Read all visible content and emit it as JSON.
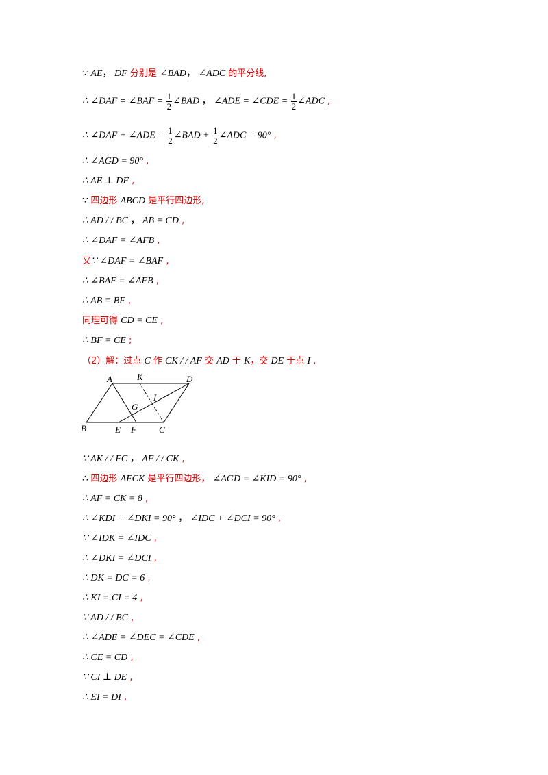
{
  "lines": [
    {
      "id": "l1",
      "parts": [
        {
          "t": "∵ ",
          "k": "u"
        },
        {
          "t": "AE",
          "k": "m"
        },
        {
          "t": "， ",
          "k": "u"
        },
        {
          "t": "DF",
          "k": "m"
        },
        {
          "t": " 分别是 ",
          "k": "r"
        },
        {
          "t": "∠BAD",
          "k": "m"
        },
        {
          "t": "， ",
          "k": "u"
        },
        {
          "t": "∠ADC",
          "k": "m"
        },
        {
          "t": " 的平分线,",
          "k": "r"
        }
      ]
    },
    {
      "id": "l2",
      "parts": [
        {
          "t": "∴ ∠DAF = ∠BAF = ",
          "k": "m"
        },
        {
          "t": "1|2",
          "k": "f"
        },
        {
          "t": "∠BAD",
          "k": "m"
        },
        {
          "t": " ，  ",
          "k": "u"
        },
        {
          "t": "∠ADE = ∠CDE = ",
          "k": "m"
        },
        {
          "t": "1|2",
          "k": "f"
        },
        {
          "t": "∠ADC",
          "k": "m"
        },
        {
          "t": " ,",
          "k": "r"
        }
      ]
    },
    {
      "id": "l3",
      "parts": [
        {
          "t": "∴ ∠DAF + ∠ADE = ",
          "k": "m"
        },
        {
          "t": "1|2",
          "k": "f"
        },
        {
          "t": "∠BAD + ",
          "k": "m"
        },
        {
          "t": "1|2",
          "k": "f"
        },
        {
          "t": "∠ADC = 90°",
          "k": "m"
        },
        {
          "t": " ,",
          "k": "r"
        }
      ]
    },
    {
      "id": "l4",
      "parts": [
        {
          "t": "∴ ∠AGD = 90°",
          "k": "m"
        },
        {
          "t": " ,",
          "k": "r"
        }
      ]
    },
    {
      "id": "l5",
      "parts": [
        {
          "t": "∴ AE ⊥ DF",
          "k": "m"
        },
        {
          "t": " ,",
          "k": "r"
        }
      ]
    },
    {
      "id": "l6",
      "parts": [
        {
          "t": "∵ ",
          "k": "u"
        },
        {
          "t": "四边形 ",
          "k": "r"
        },
        {
          "t": "ABCD",
          "k": "m"
        },
        {
          "t": " 是平行四边形,",
          "k": "r"
        }
      ]
    },
    {
      "id": "l7",
      "parts": [
        {
          "t": "∴ AD / / BC",
          "k": "m"
        },
        {
          "t": " ，  ",
          "k": "u"
        },
        {
          "t": "AB = CD",
          "k": "m"
        },
        {
          "t": " ,",
          "k": "r"
        }
      ]
    },
    {
      "id": "l8",
      "parts": [
        {
          "t": "∴ ∠DAF = ∠AFB",
          "k": "m"
        },
        {
          "t": " ,",
          "k": "r"
        }
      ]
    },
    {
      "id": "l9",
      "parts": [
        {
          "t": "又",
          "k": "r"
        },
        {
          "t": "∵ ∠DAF = ∠BAF",
          "k": "m"
        },
        {
          "t": " ,",
          "k": "r"
        }
      ]
    },
    {
      "id": "l10",
      "parts": [
        {
          "t": "∴ ∠BAF = ∠AFB",
          "k": "m"
        },
        {
          "t": " ,",
          "k": "r"
        }
      ]
    },
    {
      "id": "l11",
      "parts": [
        {
          "t": "∴ AB = BF",
          "k": "m"
        },
        {
          "t": " ,",
          "k": "r"
        }
      ]
    },
    {
      "id": "l12",
      "parts": [
        {
          "t": "同理可得 ",
          "k": "r"
        },
        {
          "t": "CD = CE",
          "k": "m"
        },
        {
          "t": " ,",
          "k": "r"
        }
      ]
    },
    {
      "id": "l13",
      "parts": [
        {
          "t": "∴ BF = CE",
          "k": "m"
        },
        {
          "t": " ;",
          "k": "r"
        }
      ]
    },
    {
      "id": "l14",
      "parts": [
        {
          "t": "（2）解：过点 ",
          "k": "r"
        },
        {
          "t": "C",
          "k": "m"
        },
        {
          "t": " 作 ",
          "k": "r"
        },
        {
          "t": "CK / / AF",
          "k": "m"
        },
        {
          "t": " 交 ",
          "k": "r"
        },
        {
          "t": "AD",
          "k": "m"
        },
        {
          "t": " 于 ",
          "k": "r"
        },
        {
          "t": "K",
          "k": "m"
        },
        {
          "t": "，交 ",
          "k": "r"
        },
        {
          "t": "DE",
          "k": "m"
        },
        {
          "t": " 于点 ",
          "k": "r"
        },
        {
          "t": "I",
          "k": "m"
        },
        {
          "t": " ,",
          "k": "r"
        }
      ]
    },
    {
      "id": "l15",
      "parts": [
        {
          "t": "∵ AK / / FC",
          "k": "m"
        },
        {
          "t": " ，  ",
          "k": "u"
        },
        {
          "t": "AF / / CK",
          "k": "m"
        },
        {
          "t": " ,",
          "k": "r"
        }
      ]
    },
    {
      "id": "l16",
      "parts": [
        {
          "t": "∴ ",
          "k": "u"
        },
        {
          "t": "四边形 ",
          "k": "r"
        },
        {
          "t": "AFCK",
          "k": "m"
        },
        {
          "t": " 是平行四边形， ",
          "k": "r"
        },
        {
          "t": "∠AGD = ∠KID = 90°",
          "k": "m"
        },
        {
          "t": " ,",
          "k": "r"
        }
      ]
    },
    {
      "id": "l17",
      "parts": [
        {
          "t": "∴ AF = CK = 8",
          "k": "m"
        },
        {
          "t": " ,",
          "k": "r"
        }
      ]
    },
    {
      "id": "l18",
      "parts": [
        {
          "t": "∴ ∠KDI + ∠DKI = 90°",
          "k": "m"
        },
        {
          "t": " ，  ",
          "k": "u"
        },
        {
          "t": "∠IDC + ∠DCI = 90°",
          "k": "m"
        },
        {
          "t": " ,",
          "k": "r"
        }
      ]
    },
    {
      "id": "l19",
      "parts": [
        {
          "t": "∵ ∠IDK = ∠IDC",
          "k": "m"
        },
        {
          "t": " ,",
          "k": "r"
        }
      ]
    },
    {
      "id": "l20",
      "parts": [
        {
          "t": "∴ ∠DKI = ∠DCI",
          "k": "m"
        },
        {
          "t": " ,",
          "k": "r"
        }
      ]
    },
    {
      "id": "l21",
      "parts": [
        {
          "t": "∴ DK = DC = 6",
          "k": "m"
        },
        {
          "t": " ,",
          "k": "r"
        }
      ]
    },
    {
      "id": "l22",
      "parts": [
        {
          "t": "∴ KI = CI = 4",
          "k": "m"
        },
        {
          "t": " ,",
          "k": "r"
        }
      ]
    },
    {
      "id": "l23",
      "parts": [
        {
          "t": "∵ AD / / BC",
          "k": "m"
        },
        {
          "t": " ,",
          "k": "r"
        }
      ]
    },
    {
      "id": "l24",
      "parts": [
        {
          "t": "∴ ∠ADE = ∠DEC = ∠CDE",
          "k": "m"
        },
        {
          "t": " ,",
          "k": "r"
        }
      ]
    },
    {
      "id": "l25",
      "parts": [
        {
          "t": "∴ CE = CD",
          "k": "m"
        },
        {
          "t": " ,",
          "k": "r"
        }
      ]
    },
    {
      "id": "l26",
      "parts": [
        {
          "t": "∵ CI ⊥ DE",
          "k": "m"
        },
        {
          "t": " ,",
          "k": "r"
        }
      ]
    },
    {
      "id": "l27",
      "parts": [
        {
          "t": "∴ EI = DI",
          "k": "m"
        },
        {
          "t": " ,",
          "k": "r"
        }
      ]
    }
  ],
  "diagram": {
    "labels": {
      "A": "A",
      "K": "K",
      "D": "D",
      "I": "I",
      "G": "G",
      "B": "B",
      "E": "E",
      "F": "F",
      "C": "C"
    }
  }
}
